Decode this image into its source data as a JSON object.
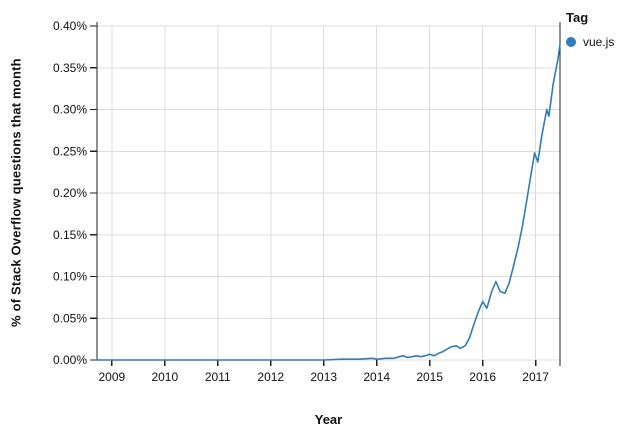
{
  "axes": {
    "x_title": "Year",
    "y_title": "% of Stack Overflow questions that month"
  },
  "legend": {
    "title": "Tag",
    "items": [
      {
        "label": "vue.js",
        "color": "#2e7cb8"
      }
    ]
  },
  "colors": {
    "line": "#2e7cb8",
    "gridline": "#dcdcdc",
    "axis": "#222222",
    "tick_text": "#111111",
    "background": "#ffffff"
  },
  "chart_data": {
    "type": "line",
    "title": "",
    "xlabel": "Year",
    "ylabel": "% of Stack Overflow questions that month",
    "grid": true,
    "legend_position": "top-right",
    "legend_title": "Tag",
    "xlim": [
      2008.72,
      2017.46
    ],
    "ylim": [
      0,
      0.4
    ],
    "x_ticks": [
      2009,
      2010,
      2011,
      2012,
      2013,
      2014,
      2015,
      2016,
      2017
    ],
    "x_tick_labels": [
      "2009",
      "2010",
      "2011",
      "2012",
      "2013",
      "2014",
      "2015",
      "2016",
      "2017"
    ],
    "y_ticks": [
      0.0,
      0.05,
      0.1,
      0.15,
      0.2,
      0.25,
      0.3,
      0.35,
      0.4
    ],
    "y_tick_labels": [
      "0.00%",
      "0.05%",
      "0.10%",
      "0.15%",
      "0.20%",
      "0.25%",
      "0.30%",
      "0.35%",
      "0.40%"
    ],
    "series": [
      {
        "name": "vue.js",
        "color": "#2e7cb8",
        "points": [
          [
            2008.72,
            0.0
          ],
          [
            2009.0,
            0.0
          ],
          [
            2009.5,
            0.0
          ],
          [
            2010.0,
            0.0
          ],
          [
            2010.5,
            0.0
          ],
          [
            2011.0,
            0.0
          ],
          [
            2011.5,
            0.0
          ],
          [
            2012.0,
            0.0
          ],
          [
            2012.5,
            0.0
          ],
          [
            2013.0,
            0.0
          ],
          [
            2013.33,
            0.001
          ],
          [
            2013.67,
            0.001
          ],
          [
            2013.92,
            0.002
          ],
          [
            2014.0,
            0.001
          ],
          [
            2014.17,
            0.002
          ],
          [
            2014.33,
            0.002
          ],
          [
            2014.42,
            0.004
          ],
          [
            2014.5,
            0.005
          ],
          [
            2014.58,
            0.003
          ],
          [
            2014.67,
            0.004
          ],
          [
            2014.75,
            0.005
          ],
          [
            2014.83,
            0.004
          ],
          [
            2014.92,
            0.005
          ],
          [
            2015.0,
            0.007
          ],
          [
            2015.08,
            0.005
          ],
          [
            2015.17,
            0.008
          ],
          [
            2015.25,
            0.01
          ],
          [
            2015.33,
            0.013
          ],
          [
            2015.42,
            0.016
          ],
          [
            2015.5,
            0.017
          ],
          [
            2015.58,
            0.014
          ],
          [
            2015.67,
            0.017
          ],
          [
            2015.75,
            0.026
          ],
          [
            2015.83,
            0.042
          ],
          [
            2015.92,
            0.058
          ],
          [
            2016.0,
            0.07
          ],
          [
            2016.08,
            0.062
          ],
          [
            2016.17,
            0.082
          ],
          [
            2016.25,
            0.094
          ],
          [
            2016.33,
            0.082
          ],
          [
            2016.42,
            0.08
          ],
          [
            2016.5,
            0.092
          ],
          [
            2016.58,
            0.112
          ],
          [
            2016.67,
            0.135
          ],
          [
            2016.75,
            0.16
          ],
          [
            2016.83,
            0.19
          ],
          [
            2016.92,
            0.225
          ],
          [
            2016.98,
            0.248
          ],
          [
            2017.04,
            0.237
          ],
          [
            2017.12,
            0.27
          ],
          [
            2017.21,
            0.3
          ],
          [
            2017.25,
            0.292
          ],
          [
            2017.33,
            0.33
          ],
          [
            2017.42,
            0.36
          ],
          [
            2017.46,
            0.378
          ]
        ]
      }
    ]
  }
}
